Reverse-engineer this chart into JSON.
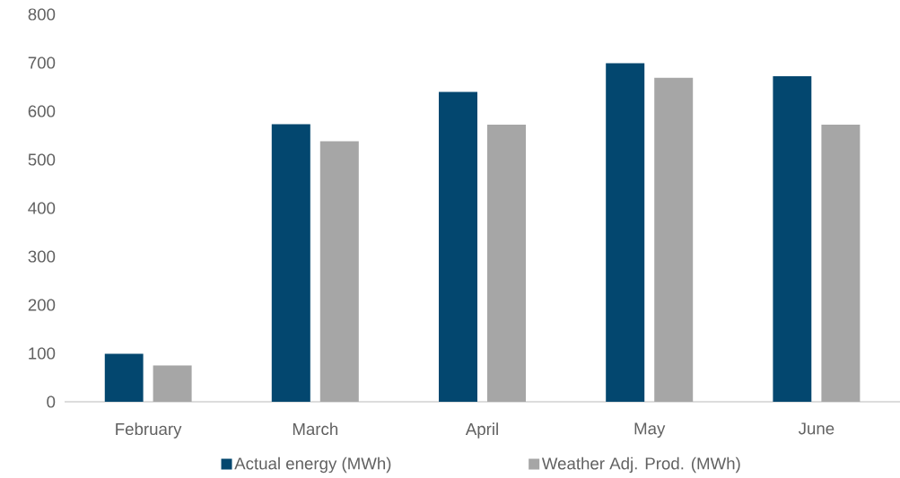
{
  "chart_data": {
    "type": "bar",
    "categories": [
      "February",
      "March",
      "April",
      "May",
      "June"
    ],
    "series": [
      {
        "name": "Actual energy (MWh)",
        "color": "#03476f",
        "values": [
          99,
          573,
          640,
          699,
          672
        ]
      },
      {
        "name": "Weather Adj. Prod. (MWh)",
        "color": "#a6a6a6",
        "values": [
          75,
          538,
          572,
          669,
          572
        ]
      }
    ],
    "ylim": [
      0,
      800
    ],
    "yticks": [
      0,
      100,
      200,
      300,
      400,
      500,
      600,
      700,
      800
    ],
    "legend": "bottom"
  }
}
